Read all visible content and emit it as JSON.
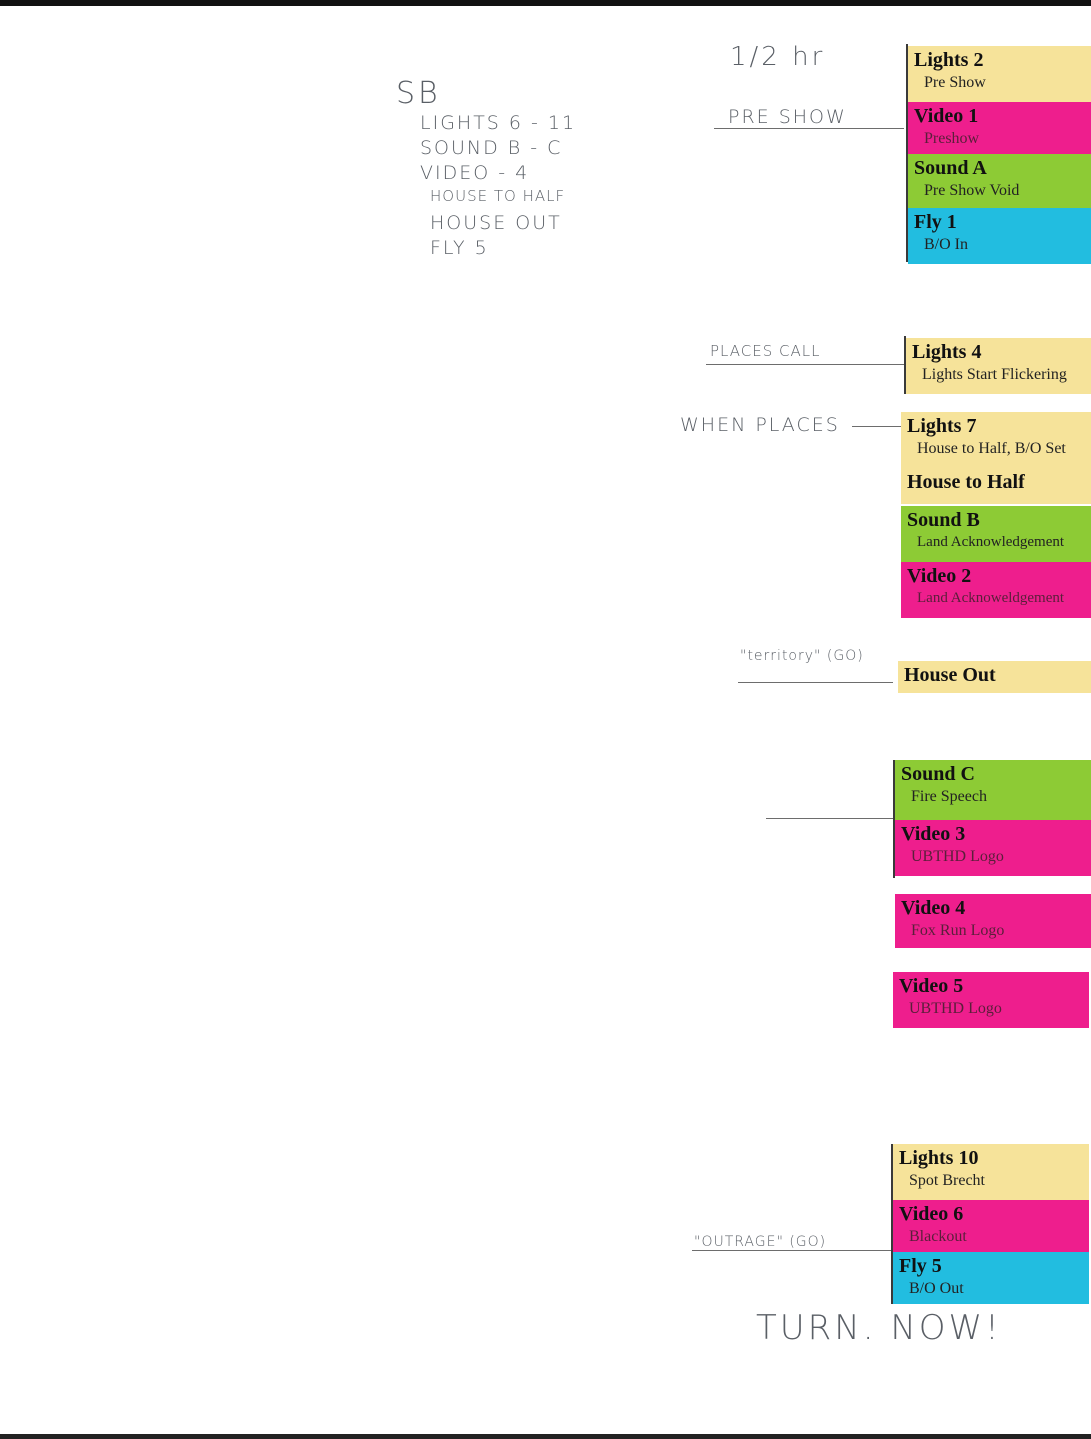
{
  "notes": {
    "time": "1/2 hr",
    "sb_heading": "SB",
    "sb_items": [
      "LIGHTS 6 - 11",
      "SOUND B - C",
      "VIDEO - 4",
      "HOUSE TO HALF",
      "HOUSE OUT",
      "FLY 5"
    ],
    "pre_show": "PRE SHOW",
    "places_call": "PLACES CALL",
    "when_places": "WHEN PLACES",
    "territory": "\"territory\" (GO)",
    "outrage": "\"OUTRAGE\" (GO)",
    "turn_now": "TURN. NOW!"
  },
  "cues": {
    "c1": {
      "title": "Lights 2",
      "sub": "Pre Show"
    },
    "c2": {
      "title": "Video 1",
      "sub": "Preshow"
    },
    "c3": {
      "title": "Sound  A",
      "sub": "Pre Show Void"
    },
    "c4": {
      "title": "Fly 1",
      "sub": "B/O In"
    },
    "c5": {
      "title": "Lights 4",
      "sub": "Lights Start Flickering"
    },
    "c6": {
      "title": "Lights 7",
      "sub": "House to Half, B/O Set"
    },
    "c7": {
      "title": "House to Half"
    },
    "c8": {
      "title": "Sound  B",
      "sub": "Land Acknowledgement"
    },
    "c9": {
      "title": "Video 2",
      "sub": "Land Acknoweldgement"
    },
    "c10": {
      "title": "House Out"
    },
    "c11": {
      "title": "Sound C",
      "sub": "Fire Speech"
    },
    "c12": {
      "title": "Video 3",
      "sub": "UBTHD Logo"
    },
    "c13": {
      "title": "Video 4",
      "sub": "Fox Run Logo"
    },
    "c14": {
      "title": "Video 5",
      "sub": "UBTHD Logo"
    },
    "c15": {
      "title": "Lights 10",
      "sub": "Spot Brecht"
    },
    "c16": {
      "title": "Video 6",
      "sub": "Blackout"
    },
    "c17": {
      "title": "Fly 5",
      "sub": "B/O Out"
    }
  },
  "colors": {
    "lights": "#f6e39a",
    "video": "#ee1e8d",
    "sound": "#8dcb35",
    "fly": "#22bde0"
  }
}
